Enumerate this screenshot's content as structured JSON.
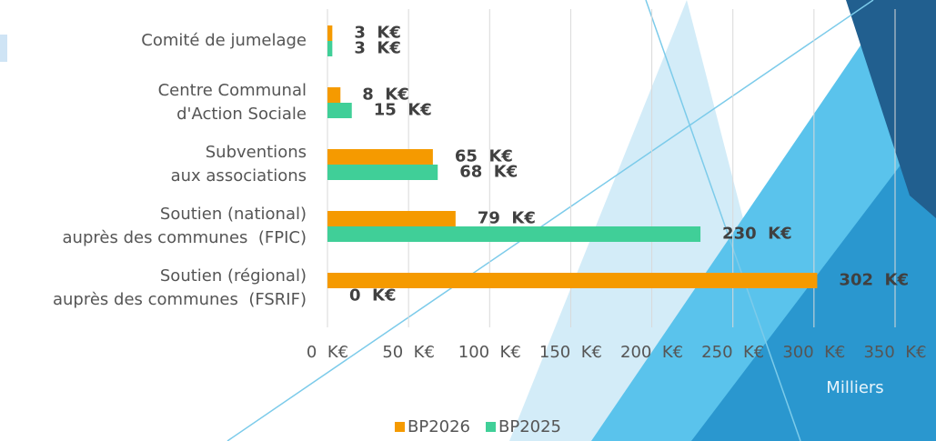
{
  "chart_data": {
    "type": "hbar",
    "categories": [
      [
        "Comité de jumelage"
      ],
      [
        "Centre Communal",
        "d'Action Sociale"
      ],
      [
        "Subventions",
        "aux associations"
      ],
      [
        "Soutien (national)",
        "auprès des communes  (FPIC)"
      ],
      [
        "Soutien (régional)",
        "auprès des communes  (FSRIF)"
      ]
    ],
    "series": [
      {
        "name": "BP2026",
        "color": "#f59a00",
        "values": [
          3,
          8,
          65,
          79,
          302
        ],
        "value_labels": [
          "3  K€",
          "8  K€",
          "65  K€",
          "79  K€",
          "302  K€"
        ]
      },
      {
        "name": "BP2025",
        "color": "#40cf98",
        "values": [
          3,
          15,
          68,
          230,
          0
        ],
        "value_labels": [
          "3  K€",
          "15  K€",
          "68  K€",
          "230  K€",
          "0  K€"
        ]
      }
    ],
    "xlim": [
      0,
      350
    ],
    "xticks": [
      {
        "value": 0,
        "label": "0  K€"
      },
      {
        "value": 50,
        "label": "50  K€"
      },
      {
        "value": 100,
        "label": "100  K€"
      },
      {
        "value": 150,
        "label": "150  K€"
      },
      {
        "value": 200,
        "label": "200  K€"
      },
      {
        "value": 250,
        "label": "250  K€"
      },
      {
        "value": 300,
        "label": "300  K€"
      },
      {
        "value": 350,
        "label": "350  K€"
      }
    ],
    "x_label": "Milliers",
    "grid": true,
    "legend": "bottom"
  }
}
